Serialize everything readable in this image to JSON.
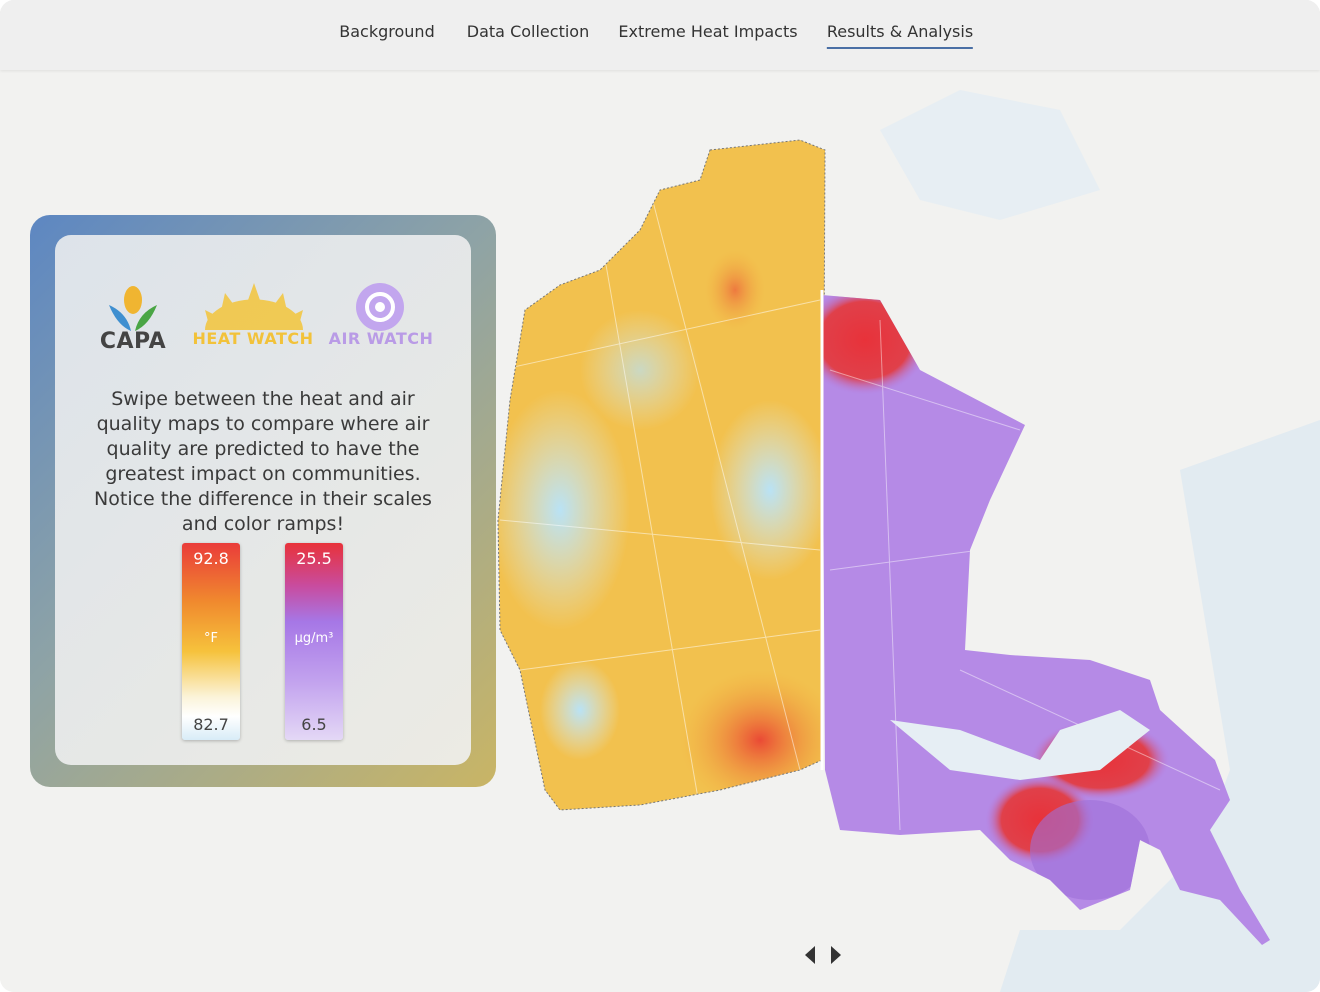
{
  "nav": {
    "items": [
      "Background",
      "Data Collection",
      "Extreme Heat Impacts",
      "Results & Analysis"
    ],
    "active": 3
  },
  "panel": {
    "logos": [
      "CAPA",
      "HEAT WATCH",
      "AIR WATCH"
    ],
    "text": "Swipe between the heat and air quality maps to compare where air quality are predicted to have the greatest impact on communities. Notice the difference in their scales and color ramps!",
    "legends": [
      {
        "max": 92.8,
        "unit": "°F",
        "min": 82.7
      },
      {
        "max": 25.5,
        "unit": "µg/m³",
        "min": 6.5
      }
    ]
  }
}
